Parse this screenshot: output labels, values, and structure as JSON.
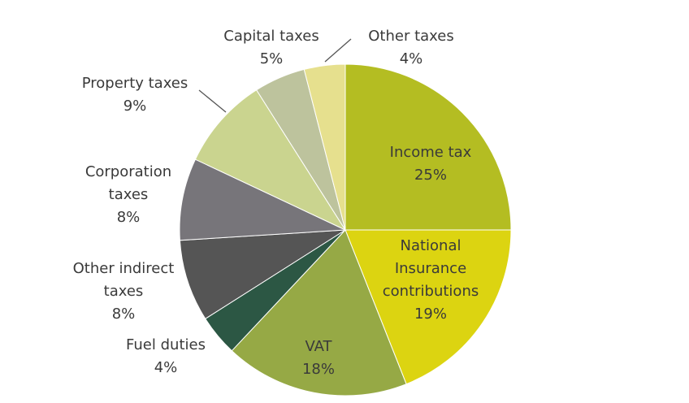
{
  "chart_data": {
    "type": "pie",
    "title": "",
    "start_angle_deg": 0,
    "direction": "clockwise",
    "slices": [
      {
        "id": "income",
        "label_lines": [
          "Income tax"
        ],
        "pct_label": "25%",
        "value": 25,
        "color": "#b4bd22"
      },
      {
        "id": "nic",
        "label_lines": [
          "National",
          "Insurance",
          "contributions"
        ],
        "pct_label": "19%",
        "value": 19,
        "color": "#dcd411"
      },
      {
        "id": "vat",
        "label_lines": [
          "VAT"
        ],
        "pct_label": "18%",
        "value": 18,
        "color": "#96a945"
      },
      {
        "id": "fuel",
        "label_lines": [
          "Fuel duties"
        ],
        "pct_label": "4%",
        "value": 4,
        "color": "#2c5744"
      },
      {
        "id": "other-indirect",
        "label_lines": [
          "Other indirect",
          "taxes"
        ],
        "pct_label": "8%",
        "value": 8,
        "color": "#555555"
      },
      {
        "id": "corporation",
        "label_lines": [
          "Corporation",
          "taxes"
        ],
        "pct_label": "8%",
        "value": 8,
        "color": "#77757a"
      },
      {
        "id": "property",
        "label_lines": [
          "Property taxes"
        ],
        "pct_label": "9%",
        "value": 9,
        "color": "#cad48f"
      },
      {
        "id": "capital",
        "label_lines": [
          "Capital taxes"
        ],
        "pct_label": "5%",
        "value": 5,
        "color": "#bdc39d"
      },
      {
        "id": "other",
        "label_lines": [
          "Other  taxes"
        ],
        "pct_label": "4%",
        "value": 4,
        "color": "#e6e08e"
      }
    ]
  }
}
